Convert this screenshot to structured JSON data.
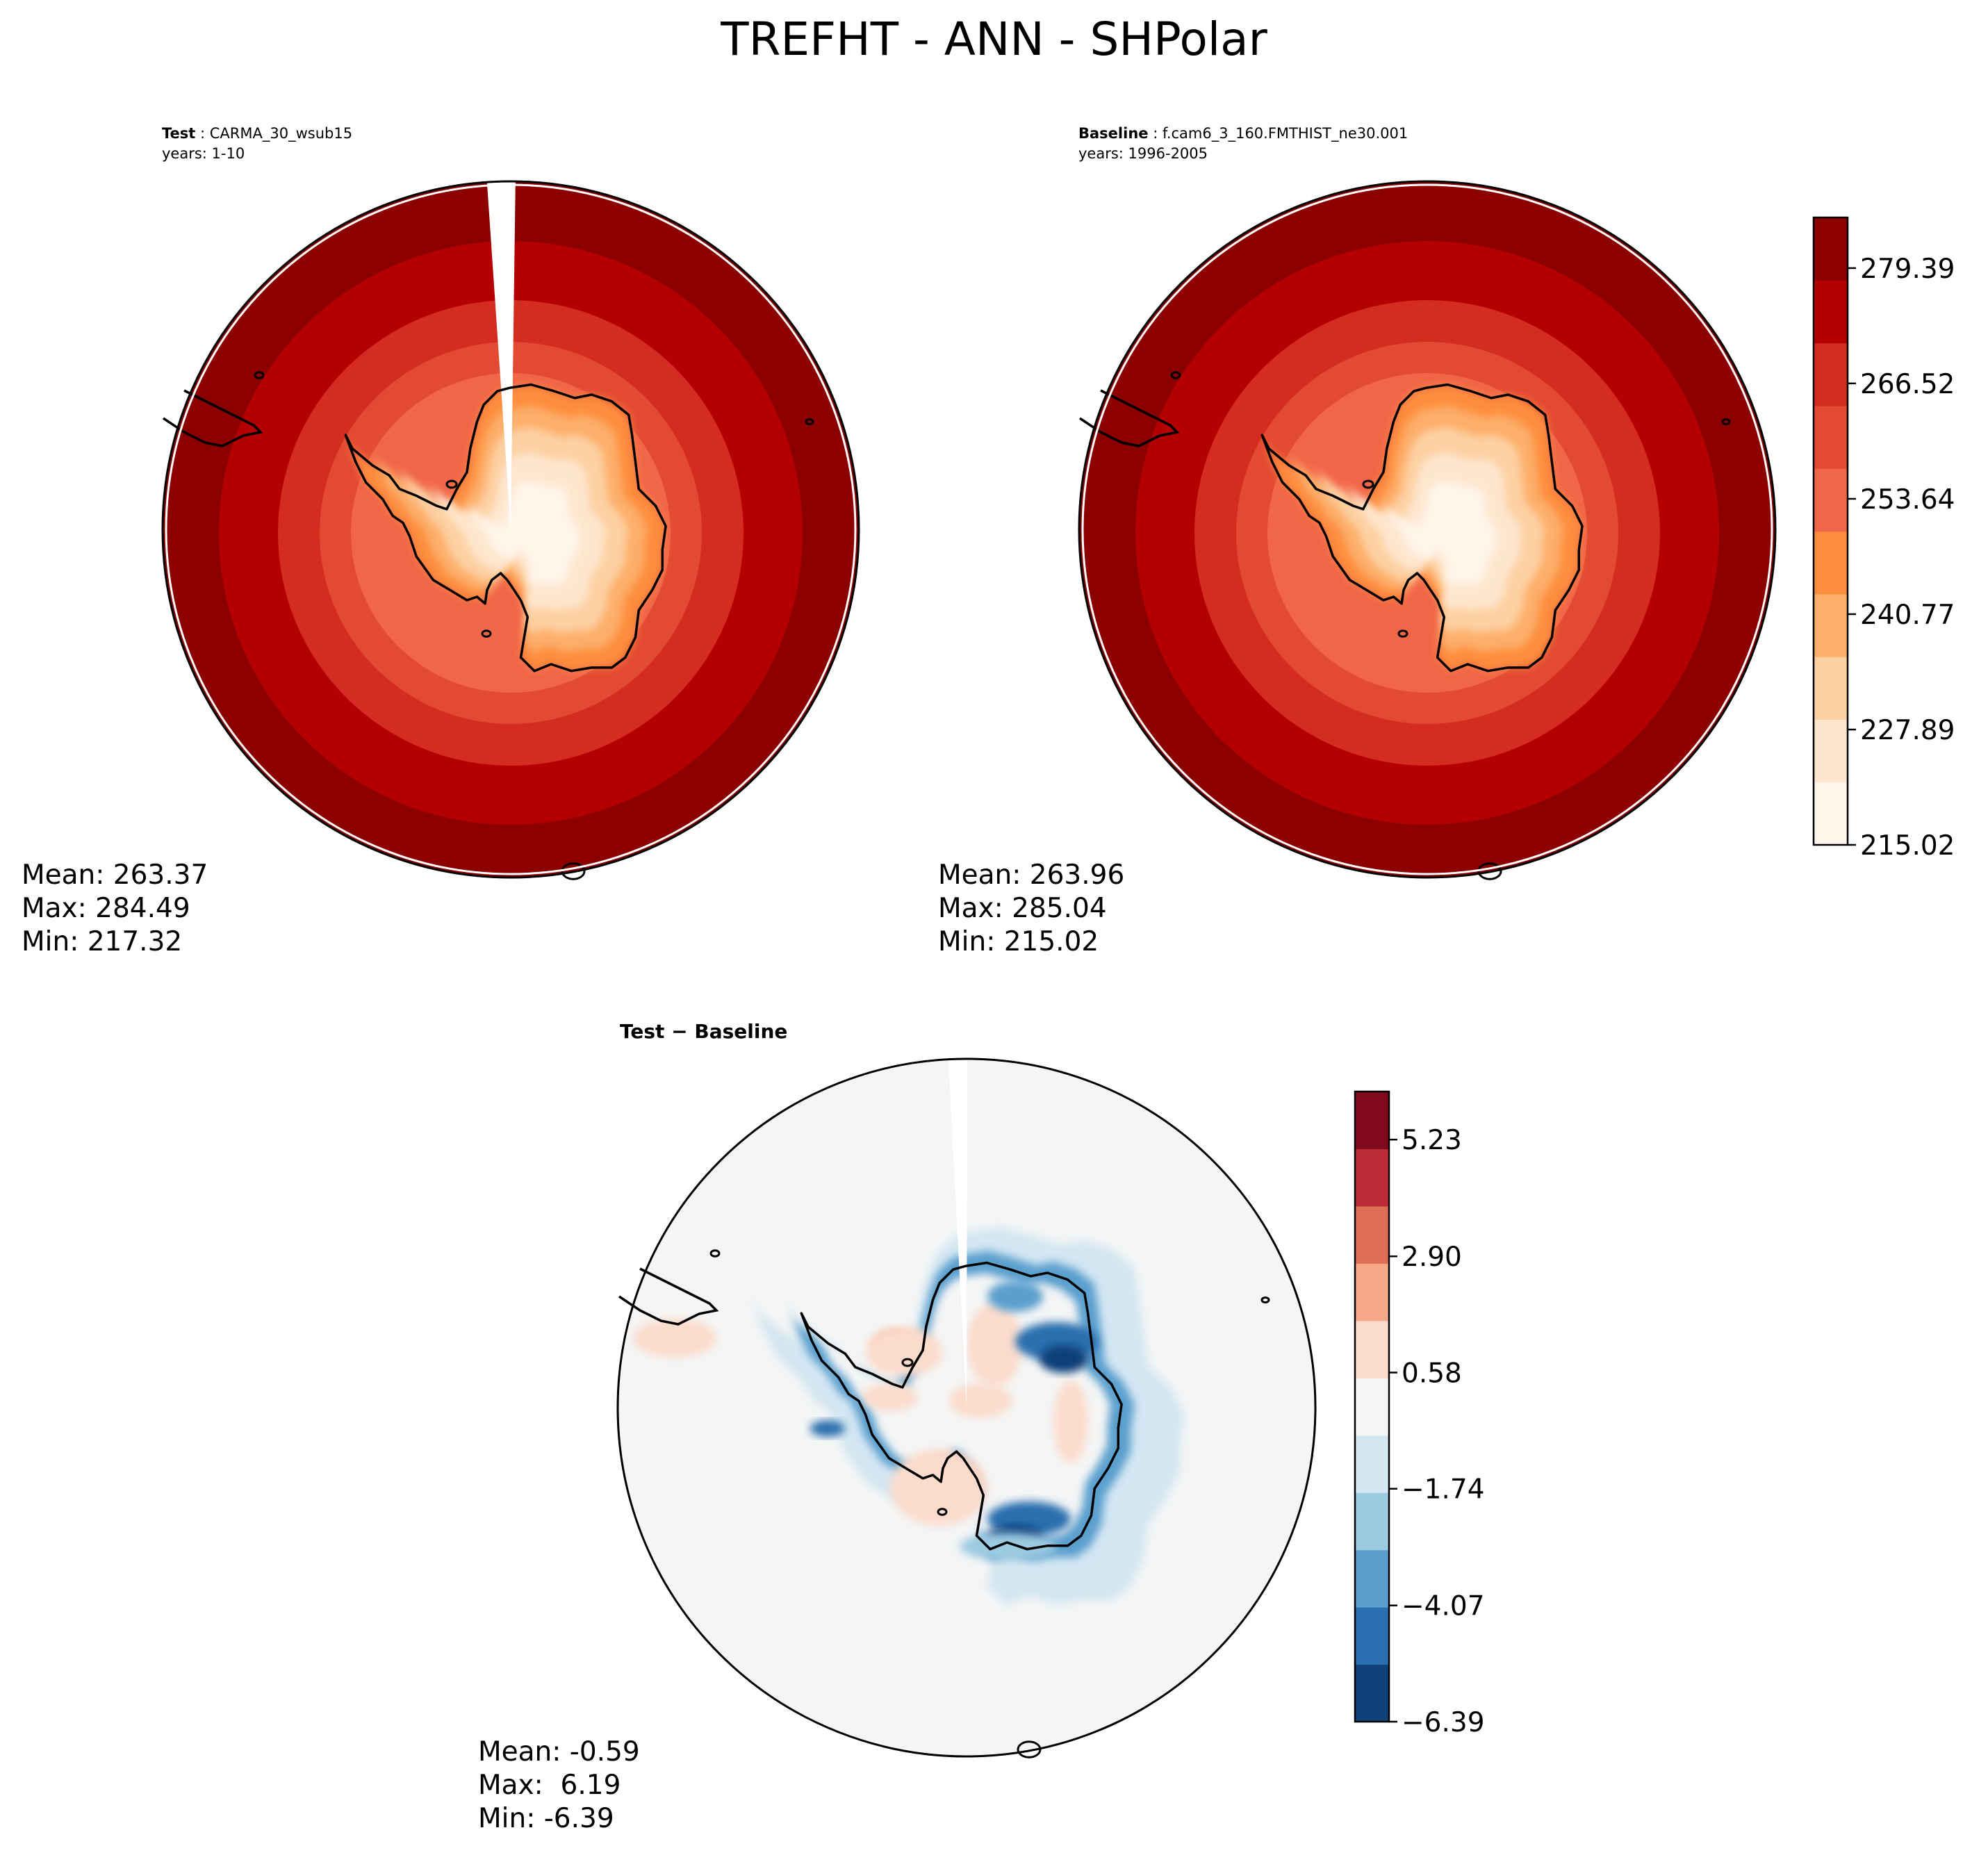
{
  "title": "TREFHT - ANN - SHPolar",
  "panels": {
    "test": {
      "label_bold": "Test",
      "label_name": "CARMA_30_wsub15",
      "years": "years: 1-10",
      "stats": {
        "mean": "Mean: 263.37",
        "max": "Max: 284.49",
        "min": "Min: 217.32"
      }
    },
    "baseline": {
      "label_bold": "Baseline",
      "label_name": "f.cam6_3_160.FMTHIST_ne30.001",
      "years": "years: 1996-2005",
      "stats": {
        "mean": "Mean: 263.96",
        "max": "Max: 285.04",
        "min": "Min: 215.02"
      }
    },
    "diff": {
      "title": "Test − Baseline",
      "stats": {
        "mean": "Mean: -0.59",
        "max": "Max:  6.19",
        "min": "Min: -6.39"
      }
    }
  },
  "chart_data": [
    {
      "type": "heatmap",
      "projection": "south polar stereographic",
      "panel": "test",
      "colormap": "reds",
      "colorbar_shared_with": "baseline"
    },
    {
      "type": "heatmap",
      "projection": "south polar stereographic",
      "panel": "baseline",
      "colormap": "reds",
      "colorbar": {
        "levels": 11,
        "range": [
          215.02,
          285.04
        ],
        "tick_labels": [
          "215.02",
          "227.89",
          "240.77",
          "253.64",
          "266.52",
          "279.39"
        ],
        "tick_values": [
          215.02,
          227.89,
          240.77,
          253.64,
          266.52,
          279.39
        ],
        "colors": [
          "#fff5eb",
          "#fee6ce",
          "#fdd0a2",
          "#fdae6b",
          "#fd8d3c",
          "#f16548",
          "#e34a33",
          "#d42c20",
          "#b40000",
          "#8c0000"
        ]
      }
    },
    {
      "type": "heatmap",
      "projection": "south polar stereographic",
      "panel": "diff",
      "colormap": "diverging red-blue",
      "colorbar": {
        "range": [
          -6.39,
          6.19
        ],
        "tick_labels": [
          "−6.39",
          "−4.07",
          "−1.74",
          "0.58",
          "2.90",
          "5.23"
        ],
        "tick_values": [
          -6.39,
          -4.07,
          -1.74,
          0.58,
          2.9,
          5.23
        ],
        "colors": [
          "#0f4179",
          "#2a6faf",
          "#5a9fce",
          "#9ccae1",
          "#d3e6f2",
          "#f4f5f5",
          "#fbdccc",
          "#f4a885",
          "#dc6e56",
          "#bd2b36",
          "#80091e"
        ]
      }
    }
  ]
}
